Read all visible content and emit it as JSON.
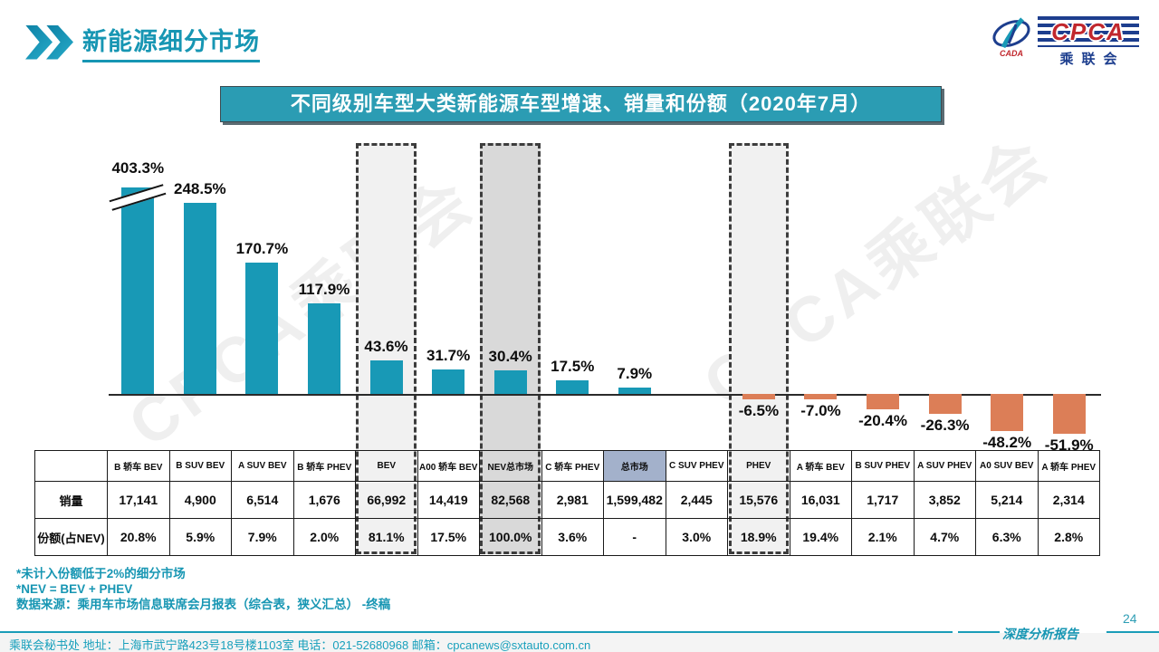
{
  "header": {
    "title": "新能源细分市场"
  },
  "logo": {
    "cpca": "CPCA",
    "cada": "CADA",
    "org": "乘联会"
  },
  "banner": "不同级别车型大类新能源车型增速、销量和份额（2020年7月）",
  "watermark_text": "CPCA乘联会",
  "colors": {
    "teal_accent": "#1796B3",
    "bar_positive": "#1899B6",
    "bar_negative": "#DC7E57",
    "banner_bg": "#2B9CB3",
    "market_header_bg": "#A3B1CB",
    "box_light_bg": "#F1F1F1",
    "box_dark_bg": "#D9D9D9"
  },
  "chart_data": {
    "type": "bar",
    "title": "不同级别车型大类新能源车型增速、销量和份额（2020年7月）",
    "categories": [
      "B 轿车 BEV",
      "B SUV BEV",
      "A SUV BEV",
      "B 轿车 PHEV",
      "BEV",
      "A00 轿车 BEV",
      "NEV总市场",
      "C 轿车 PHEV",
      "总市场",
      "C SUV PHEV",
      "PHEV",
      "A 轿车 BEV",
      "B SUV PHEV",
      "A SUV PHEV",
      "A0 SUV BEV",
      "A 轿车 PHEV"
    ],
    "series": [
      {
        "name": "增速",
        "unit": "%",
        "values": [
          403.3,
          248.5,
          170.7,
          117.9,
          43.6,
          31.7,
          30.4,
          17.5,
          7.9,
          null,
          -6.5,
          -7.0,
          -20.4,
          -26.3,
          -48.2,
          -51.9
        ]
      },
      {
        "name": "销量",
        "values": [
          17141,
          4900,
          6514,
          1676,
          66992,
          14419,
          82568,
          2981,
          1599482,
          2445,
          15576,
          16031,
          1717,
          3852,
          5214,
          2314
        ]
      },
      {
        "name": "份额(占NEV)",
        "unit": "%",
        "values": [
          20.8,
          5.9,
          7.9,
          2.0,
          81.1,
          17.5,
          100.0,
          3.6,
          null,
          3.0,
          18.9,
          19.4,
          2.1,
          4.7,
          6.3,
          2.8
        ]
      }
    ],
    "value_labels": [
      "403.3%",
      "248.5%",
      "170.7%",
      "117.9%",
      "43.6%",
      "31.7%",
      "30.4%",
      "17.5%",
      "7.9%",
      null,
      "-6.5%",
      "-7.0%",
      "-20.4%",
      "-26.3%",
      "-48.2%",
      "-51.9%"
    ],
    "axis_break_category": "B 轿车 BEV",
    "highlighted_categories": [
      "BEV",
      "NEV总市场",
      "PHEV"
    ],
    "legend": false,
    "grid": false
  },
  "table": {
    "row_headers": [
      "销量",
      "份额(占NEV)"
    ],
    "columns": [
      {
        "label": "B 轿车 BEV",
        "growth": 403.3,
        "growth_label": "403.3%",
        "sales": "17,141",
        "share": "20.8%",
        "axis_break": true
      },
      {
        "label": "B SUV BEV",
        "growth": 248.5,
        "growth_label": "248.5%",
        "sales": "4,900",
        "share": "5.9%"
      },
      {
        "label": "A SUV BEV",
        "growth": 170.7,
        "growth_label": "170.7%",
        "sales": "6,514",
        "share": "7.9%"
      },
      {
        "label": "B 轿车 PHEV",
        "growth": 117.9,
        "growth_label": "117.9%",
        "sales": "1,676",
        "share": "2.0%"
      },
      {
        "label": "BEV",
        "growth": 43.6,
        "growth_label": "43.6%",
        "sales": "66,992",
        "share": "81.1%",
        "box": "light"
      },
      {
        "label": "A00 轿车 BEV",
        "growth": 31.7,
        "growth_label": "31.7%",
        "sales": "14,419",
        "share": "17.5%"
      },
      {
        "label": "NEV总市场",
        "growth": 30.4,
        "growth_label": "30.4%",
        "sales": "82,568",
        "share": "100.0%",
        "box": "dark"
      },
      {
        "label": "C 轿车 PHEV",
        "growth": 17.5,
        "growth_label": "17.5%",
        "sales": "2,981",
        "share": "3.6%"
      },
      {
        "label": "总市场",
        "growth": 7.9,
        "growth_label": "7.9%",
        "sales": "1,599,482",
        "share": "-",
        "header_accent": true
      },
      {
        "label": "C SUV PHEV",
        "growth": null,
        "growth_label": "",
        "sales": "2,445",
        "share": "3.0%"
      },
      {
        "label": "PHEV",
        "growth": -6.5,
        "growth_label": "-6.5%",
        "sales": "15,576",
        "share": "18.9%",
        "box": "light"
      },
      {
        "label": "A 轿车 BEV",
        "growth": -7.0,
        "growth_label": "-7.0%",
        "sales": "16,031",
        "share": "19.4%"
      },
      {
        "label": "B SUV PHEV",
        "growth": -20.4,
        "growth_label": "-20.4%",
        "sales": "1,717",
        "share": "2.1%"
      },
      {
        "label": "A SUV PHEV",
        "growth": -26.3,
        "growth_label": "-26.3%",
        "sales": "3,852",
        "share": "4.7%"
      },
      {
        "label": "A0 SUV BEV",
        "growth": -48.2,
        "growth_label": "-48.2%",
        "sales": "5,214",
        "share": "6.3%"
      },
      {
        "label": "A 轿车 PHEV",
        "growth": -51.9,
        "growth_label": "-51.9%",
        "sales": "2,314",
        "share": "2.8%"
      }
    ]
  },
  "footnotes": [
    "*未计入份额低于2%的细分市场",
    "*NEV = BEV + PHEV",
    "数据来源：乘用车市场信息联席会月报表（综合表，狭义汇总） -终稿"
  ],
  "footer": {
    "contact": "乘联会秘书处  地址：上海市武宁路423号18号楼1103室  电话：021-52680968   邮箱：cpcanews@sxtauto.com.cn",
    "report": "深度分析报告",
    "page": "24"
  }
}
